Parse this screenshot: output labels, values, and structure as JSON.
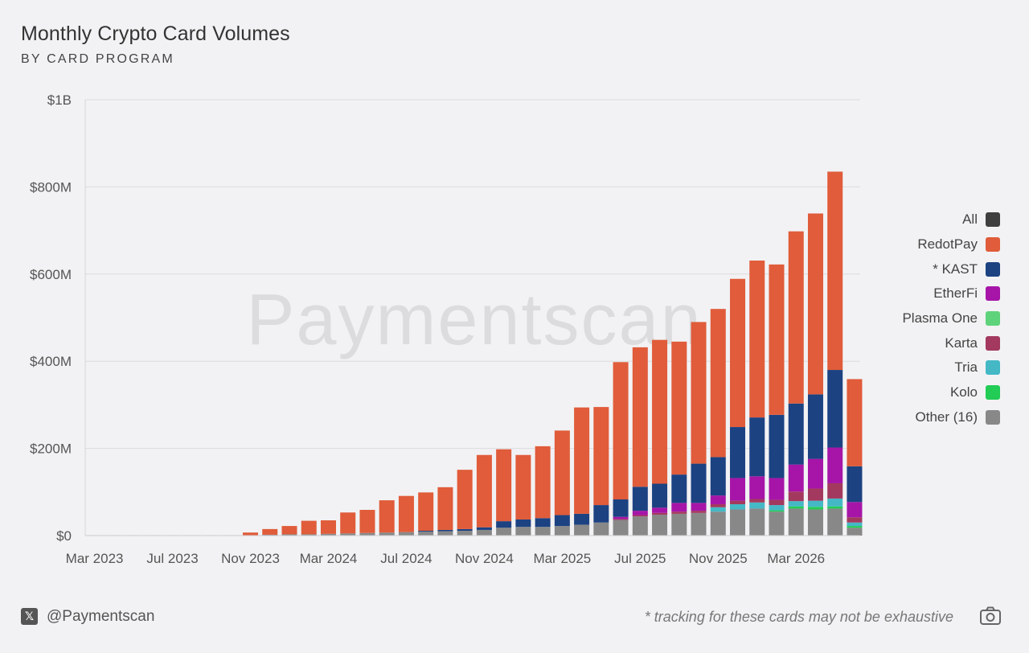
{
  "header": {
    "title": "Monthly Crypto Card Volumes",
    "subtitle": "BY CARD PROGRAM"
  },
  "watermark": "Paymentscan",
  "footer": {
    "x_icon": "x-logo-icon",
    "handle": "@Paymentscan",
    "note": "* tracking for these cards may not be exhaustive",
    "camera_icon": "camera-icon"
  },
  "legend": [
    {
      "label": "All",
      "color": "#3f3f3f"
    },
    {
      "label": "RedotPay",
      "color": "#e05c3a"
    },
    {
      "label": "* KAST",
      "color": "#1c4282"
    },
    {
      "label": "EtherFi",
      "color": "#a615a8"
    },
    {
      "label": "Plasma One",
      "color": "#5fd27c"
    },
    {
      "label": "Karta",
      "color": "#a3395e"
    },
    {
      "label": "Tria",
      "color": "#45b8c6"
    },
    {
      "label": "Kolo",
      "color": "#22cc55"
    },
    {
      "label": "Other (16)",
      "color": "#888888"
    }
  ],
  "chart_data": {
    "type": "bar",
    "stacked": true,
    "title": "Monthly Crypto Card Volumes",
    "subtitle": "BY CARD PROGRAM",
    "xlabel": "",
    "ylabel": "",
    "ylim": [
      0,
      1000
    ],
    "y_unit": "millions USD",
    "y_ticks": [
      0,
      200,
      400,
      600,
      800,
      1000
    ],
    "y_tick_labels": [
      "$0",
      "$200M",
      "$400M",
      "$600M",
      "$800M",
      "$1B"
    ],
    "grid": true,
    "legend_position": "right",
    "x_tick_labels": [
      "Mar 2023",
      "Jul 2023",
      "Nov 2023",
      "Mar 2024",
      "Jul 2024",
      "Nov 2024",
      "Mar 2025",
      "Jul 2025",
      "Nov 2025",
      "Mar 2026"
    ],
    "categories": [
      "Mar 2023",
      "Apr 2023",
      "May 2023",
      "Jun 2023",
      "Jul 2023",
      "Aug 2023",
      "Sep 2023",
      "Oct 2023",
      "Nov 2023",
      "Dec 2023",
      "Jan 2024",
      "Feb 2024",
      "Mar 2024",
      "Apr 2024",
      "May 2024",
      "Jun 2024",
      "Jul 2024",
      "Aug 2024",
      "Sep 2024",
      "Oct 2024",
      "Nov 2024",
      "Dec 2024",
      "Jan 2025",
      "Feb 2025",
      "Mar 2025",
      "Apr 2025",
      "May 2025",
      "Jun 2025",
      "Jul 2025",
      "Aug 2025",
      "Sep 2025",
      "Oct 2025",
      "Nov 2025",
      "Dec 2025",
      "Jan 2026",
      "Feb 2026",
      "Mar 2026",
      "Apr 2026",
      "May 2026",
      "Jun 2026"
    ],
    "series": [
      {
        "name": "Other (16)",
        "color": "#888888",
        "values": [
          1,
          1,
          1,
          1,
          1,
          1,
          1,
          1,
          1,
          2,
          3,
          3,
          4,
          5,
          6,
          7,
          8,
          9,
          10,
          11,
          13,
          18,
          20,
          20,
          22,
          25,
          30,
          36,
          44,
          48,
          50,
          52,
          55,
          60,
          62,
          55,
          62,
          60,
          62,
          18
        ]
      },
      {
        "name": "Kolo",
        "color": "#22cc55",
        "values": [
          0,
          0,
          0,
          0,
          0,
          0,
          0,
          0,
          0,
          0,
          0,
          0,
          0,
          0,
          0,
          0,
          0,
          0,
          0,
          0,
          0,
          0,
          0,
          0,
          0,
          0,
          0,
          0,
          0,
          0,
          0,
          0,
          0,
          0,
          0,
          3,
          5,
          6,
          5,
          4
        ]
      },
      {
        "name": "Tria",
        "color": "#45b8c6",
        "values": [
          0,
          0,
          0,
          0,
          0,
          0,
          0,
          0,
          0,
          0,
          0,
          0,
          0,
          0,
          0,
          0,
          0,
          0,
          0,
          0,
          0,
          0,
          0,
          0,
          0,
          0,
          0,
          0,
          0,
          0,
          0,
          0,
          10,
          12,
          14,
          12,
          12,
          14,
          18,
          8
        ]
      },
      {
        "name": "Karta",
        "color": "#a3395e",
        "values": [
          0,
          0,
          0,
          0,
          0,
          0,
          0,
          0,
          0,
          0,
          0,
          0,
          0,
          0,
          0,
          0,
          0,
          0,
          0,
          0,
          0,
          0,
          0,
          0,
          0,
          0,
          0,
          2,
          3,
          4,
          5,
          5,
          7,
          8,
          8,
          12,
          22,
          28,
          35,
          12
        ]
      },
      {
        "name": "Plasma One",
        "color": "#5fd27c",
        "values": [
          0,
          0,
          0,
          0,
          0,
          0,
          0,
          0,
          0,
          0,
          0,
          0,
          0,
          0,
          0,
          0,
          0,
          0,
          0,
          0,
          0,
          0,
          0,
          0,
          0,
          0,
          0,
          0,
          0,
          0,
          0,
          0,
          0,
          0,
          0,
          0,
          0,
          0,
          0,
          0
        ]
      },
      {
        "name": "EtherFi",
        "color": "#a615a8",
        "values": [
          0,
          0,
          0,
          0,
          0,
          0,
          0,
          0,
          0,
          0,
          0,
          0,
          0,
          0,
          0,
          0,
          0,
          0,
          0,
          0,
          0,
          0,
          0,
          0,
          0,
          0,
          0,
          5,
          10,
          12,
          20,
          18,
          20,
          52,
          52,
          50,
          62,
          68,
          82,
          35
        ]
      },
      {
        "name": "* KAST",
        "color": "#1c4282",
        "values": [
          0,
          0,
          0,
          0,
          0,
          0,
          0,
          0,
          0,
          0,
          0,
          0,
          0,
          0,
          0,
          0,
          0,
          2,
          3,
          4,
          6,
          15,
          17,
          20,
          25,
          25,
          40,
          40,
          55,
          55,
          65,
          90,
          88,
          117,
          135,
          145,
          140,
          148,
          178,
          82
        ]
      },
      {
        "name": "RedotPay",
        "color": "#e05c3a",
        "values": [
          0,
          0,
          0,
          0,
          0,
          0,
          0,
          0,
          6,
          13,
          19,
          31,
          31,
          48,
          53,
          74,
          83,
          88,
          98,
          136,
          166,
          165,
          148,
          165,
          194,
          244,
          225,
          315,
          320,
          330,
          305,
          325,
          340,
          340,
          360,
          345,
          395,
          415,
          455,
          200
        ]
      }
    ]
  }
}
